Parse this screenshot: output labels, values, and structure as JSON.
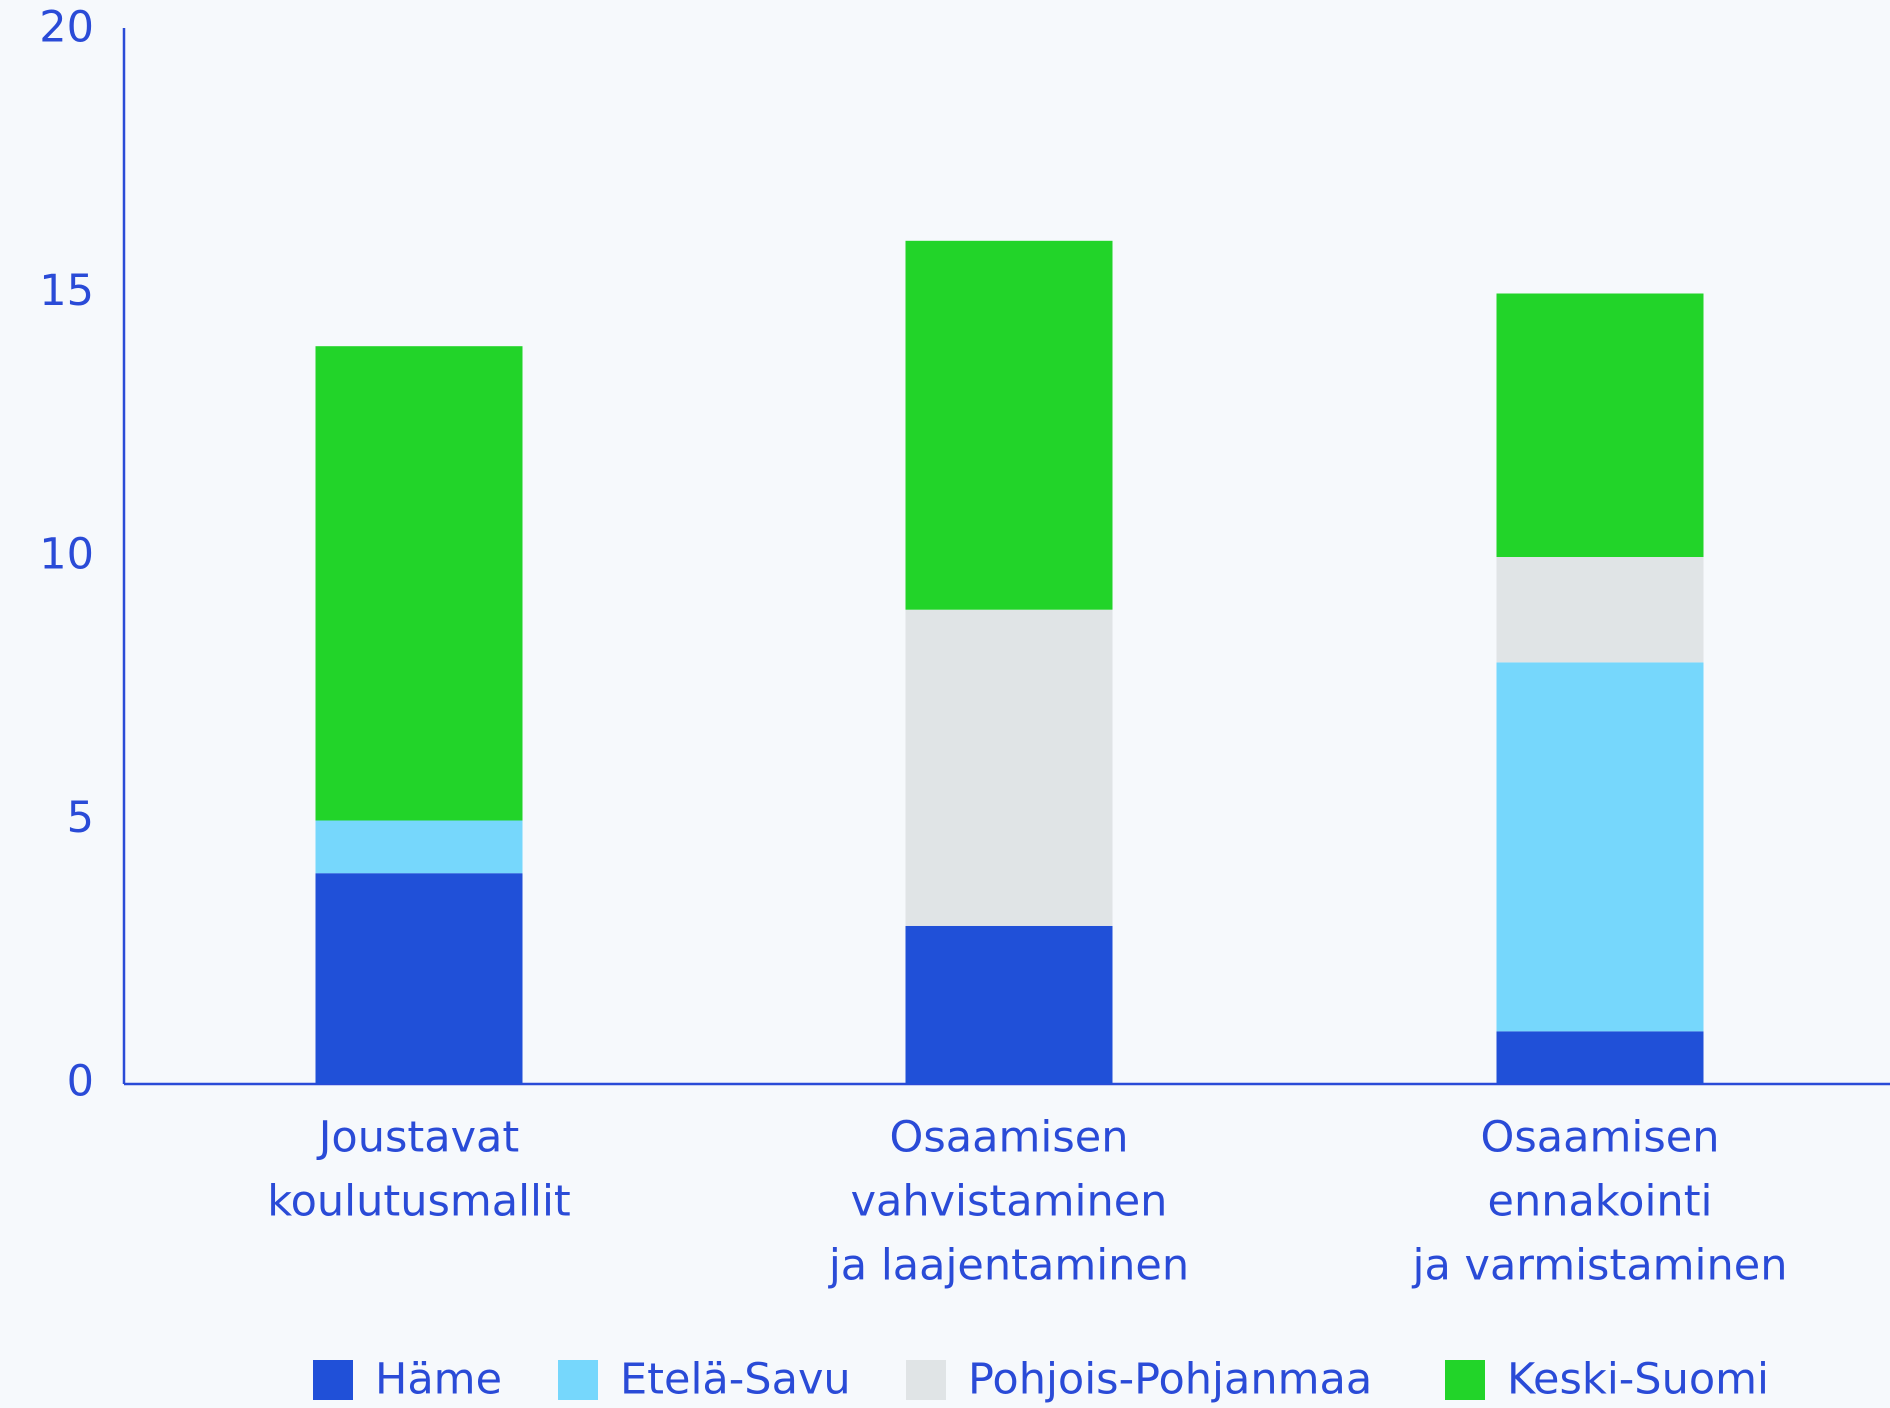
{
  "chart_data": {
    "type": "stacked_bar",
    "categories": [
      [
        "Joustavat",
        "koulutusmallit"
      ],
      [
        "Osaamisen",
        "vahvistaminen",
        "ja laajentaminen"
      ],
      [
        "Osaamisen",
        "ennakointi",
        "ja varmistaminen"
      ]
    ],
    "series": [
      {
        "name": "Häme",
        "color": "#2050d8",
        "values": [
          4,
          3,
          1
        ]
      },
      {
        "name": "Etelä-Savu",
        "color": "#76d7fc",
        "values": [
          1,
          0,
          7
        ]
      },
      {
        "name": "Pohjois-Pohjanmaa",
        "color": "#e0e4e6",
        "values": [
          0,
          6,
          2
        ]
      },
      {
        "name": "Keski-Suomi",
        "color": "#22d429",
        "values": [
          9,
          7,
          5
        ]
      }
    ],
    "ylim": [
      0,
      20
    ],
    "yticks": [
      0,
      5,
      10,
      15,
      20
    ],
    "grid": false,
    "legend": "bottom"
  }
}
